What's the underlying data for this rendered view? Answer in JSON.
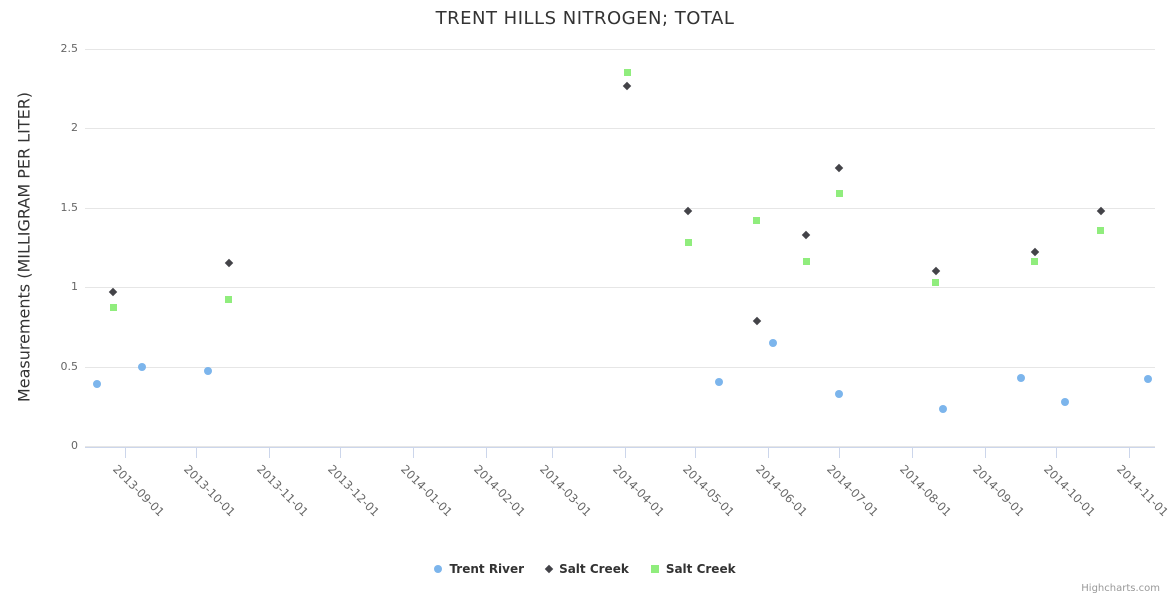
{
  "credit": "Highcharts.com",
  "chart_data": {
    "type": "scatter",
    "title": "TRENT HILLS NITROGEN; TOTAL",
    "xlabel": "",
    "ylabel": "Measurements (MILLIGRAM PER LITER)",
    "ylim": [
      0,
      2.5
    ],
    "y_ticks": [
      0,
      0.5,
      1,
      1.5,
      2,
      2.5
    ],
    "y_tick_labels": [
      "0",
      "0.5",
      "1",
      "1.5",
      "2",
      "2.5"
    ],
    "x_ticks": [
      "2013-09-01",
      "2013-10-01",
      "2013-11-01",
      "2013-12-01",
      "2014-01-01",
      "2014-02-01",
      "2014-03-01",
      "2014-04-01",
      "2014-05-01",
      "2014-06-01",
      "2014-07-01",
      "2014-08-01",
      "2014-09-01",
      "2014-10-01",
      "2014-11-01"
    ],
    "x_range": [
      "2013-08-15",
      "2014-11-12"
    ],
    "grid": "horizontal-only",
    "legend_position": "bottom-center",
    "colors": {
      "grid": "#e6e6e6",
      "axis": "#ccd6eb",
      "tick_label": "#666666",
      "title_text": "#333333"
    },
    "series": [
      {
        "name": "Trent River",
        "marker": "circle",
        "color": "#7cb5ec",
        "points": [
          [
            "2013-08-20",
            0.39
          ],
          [
            "2013-09-08",
            0.5
          ],
          [
            "2013-10-06",
            0.47
          ],
          [
            "2014-05-11",
            0.4
          ],
          [
            "2014-06-03",
            0.65
          ],
          [
            "2014-07-01",
            0.33
          ],
          [
            "2014-08-14",
            0.23
          ],
          [
            "2014-09-16",
            0.43
          ],
          [
            "2014-10-05",
            0.28
          ],
          [
            "2014-11-09",
            0.42
          ]
        ]
      },
      {
        "name": "Salt Creek",
        "marker": "diamond",
        "color": "#434348",
        "points": [
          [
            "2013-08-27",
            0.97
          ],
          [
            "2013-10-15",
            1.15
          ],
          [
            "2014-04-02",
            2.27
          ],
          [
            "2014-04-28",
            1.48
          ],
          [
            "2014-05-27",
            0.79
          ],
          [
            "2014-06-17",
            1.33
          ],
          [
            "2014-07-01",
            1.75
          ],
          [
            "2014-08-11",
            1.1
          ],
          [
            "2014-09-22",
            1.22
          ],
          [
            "2014-10-20",
            1.48
          ]
        ]
      },
      {
        "name": "Salt Creek",
        "marker": "square",
        "color": "#90ed7d",
        "points": [
          [
            "2013-08-27",
            0.87
          ],
          [
            "2013-10-15",
            0.92
          ],
          [
            "2014-04-02",
            2.35
          ],
          [
            "2014-04-28",
            1.28
          ],
          [
            "2014-05-27",
            1.42
          ],
          [
            "2014-06-17",
            1.16
          ],
          [
            "2014-07-01",
            1.59
          ],
          [
            "2014-08-11",
            1.03
          ],
          [
            "2014-09-22",
            1.16
          ],
          [
            "2014-10-20",
            1.36
          ]
        ]
      }
    ]
  }
}
